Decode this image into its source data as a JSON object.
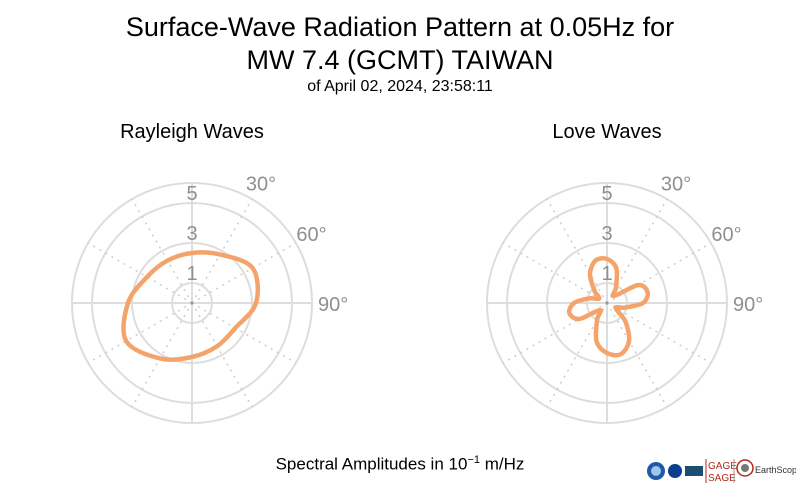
{
  "header": {
    "title_line1": "Surface-Wave Radiation Pattern at 0.05Hz for",
    "title_line2": "MW 7.4 (GCMT) TAIWAN",
    "subtitle": "of April 02, 2024, 23:58:11"
  },
  "footer": {
    "label": "Spectral Amplitudes in",
    "unit_base": "10",
    "unit_exp": "−1",
    "unit_suffix": "m/Hz"
  },
  "logos": {
    "gage": "GAGE",
    "sage": "SAGE",
    "consortium": "EarthScope"
  },
  "colors": {
    "curve": "#F4A46A",
    "grid": "#DDDDDD",
    "grid_dotted": "#CCCCCC",
    "label": "#8F8F8F"
  },
  "chart_data": [
    {
      "type": "polar-line",
      "title": "Rayleigh Waves",
      "radial_max": 6,
      "radial_ticks": [
        1,
        3,
        5
      ],
      "angular_labels": [
        "30°",
        "60°",
        "90°"
      ],
      "angular_grid_step_deg": 30,
      "series": [
        {
          "azimuth_deg": [
            0,
            30,
            60,
            90,
            120,
            150,
            180,
            210,
            240,
            270,
            300,
            330
          ],
          "amplitude": [
            2.5,
            2.8,
            3.5,
            3.2,
            2.5,
            2.5,
            2.7,
            3.2,
            3.8,
            3.2,
            2.6,
            2.45
          ]
        }
      ]
    },
    {
      "type": "polar-line",
      "title": "Love Waves",
      "radial_max": 6,
      "radial_ticks": [
        1,
        3,
        5
      ],
      "angular_labels": [
        "30°",
        "60°",
        "90°"
      ],
      "angular_grid_step_deg": 30,
      "series": [
        {
          "azimuth_deg": [
            0,
            15,
            30,
            45,
            60,
            75,
            90,
            105,
            120,
            135,
            150,
            165,
            180,
            195,
            210,
            225,
            240,
            255,
            270,
            285,
            300,
            315,
            330,
            345
          ],
          "amplitude": [
            2.2,
            1.8,
            0.9,
            0.5,
            1.8,
            2.1,
            1.8,
            0.9,
            0.5,
            1.3,
            2.2,
            2.65,
            2.5,
            2.0,
            1.0,
            0.5,
            1.6,
            1.95,
            1.65,
            0.9,
            0.45,
            0.9,
            1.7,
            2.2
          ]
        }
      ]
    }
  ]
}
